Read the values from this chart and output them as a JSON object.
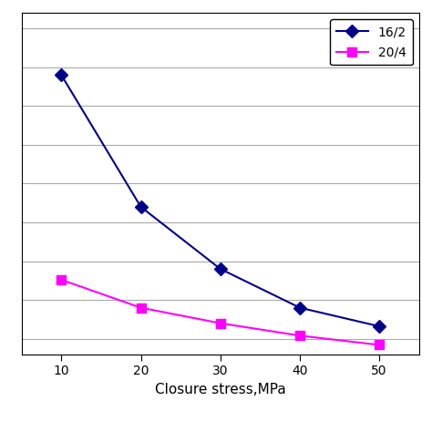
{
  "x": [
    10,
    20,
    30,
    40,
    50
  ],
  "series": [
    {
      "label": "16/2",
      "color": "#00008B",
      "marker": "D",
      "markercolor": "#00008B",
      "y": [
        2200,
        1350,
        950,
        700,
        580
      ]
    },
    {
      "label": "20/4",
      "color": "#FF00FF",
      "marker": "s",
      "markercolor": "#FF00FF",
      "y": [
        880,
        700,
        600,
        520,
        460
      ]
    }
  ],
  "xlabel": "Closure stress,MPa",
  "xlim": [
    5,
    55
  ],
  "ylim": [
    400,
    2600
  ],
  "xticks": [
    10,
    20,
    30,
    40,
    50
  ],
  "grid_color": "#aaaaaa",
  "grid_linewidth": 0.8,
  "figsize": [
    4.74,
    4.74
  ],
  "dpi": 100,
  "xlabel_fontsize": 11,
  "xlabel_fontstyle": "normal",
  "legend_fontsize": 10,
  "linewidth": 1.5,
  "markersize": 7
}
